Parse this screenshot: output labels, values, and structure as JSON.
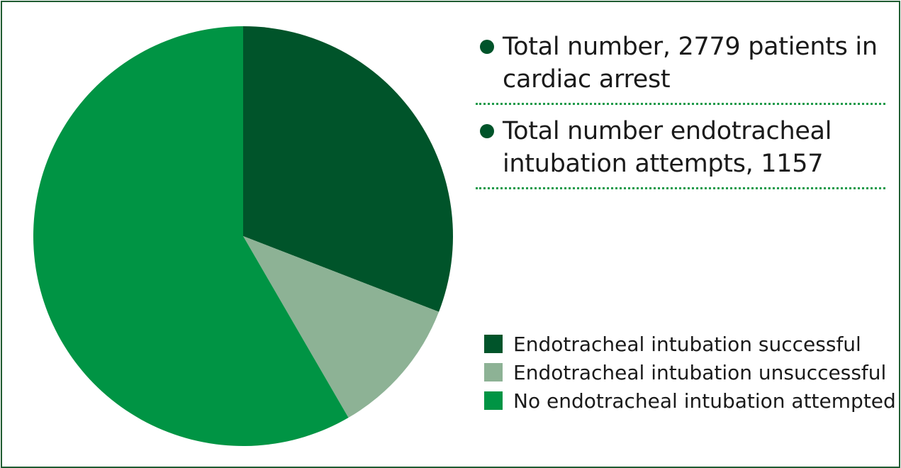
{
  "chart_data": {
    "type": "pie",
    "title": "",
    "slices": [
      {
        "label": "Endotracheal intubation successful",
        "value": 858,
        "color": "#00542a"
      },
      {
        "label": "Endotracheal intubation unsuccessful",
        "value": 299,
        "color": "#8db295"
      },
      {
        "label": "No endotracheal intubation attempted",
        "value": 1622,
        "color": "#009444"
      }
    ],
    "legend_position": "right"
  },
  "stats": [
    {
      "text": "Total number, 2779 patients in cardiac arrest",
      "color": "#00542a"
    },
    {
      "text": "Total number endotracheal intubation attempts, 1157",
      "color": "#00542a"
    }
  ],
  "legend": [
    {
      "label": "Endotracheal intubation successful",
      "color": "#00542a"
    },
    {
      "label": "Endotracheal intubation unsuccessful",
      "color": "#8db295"
    },
    {
      "label": "No endotracheal intubation attempted",
      "color": "#009444"
    }
  ],
  "colors": {
    "border": "#1f5c31",
    "divider": "#1e9a4a"
  }
}
